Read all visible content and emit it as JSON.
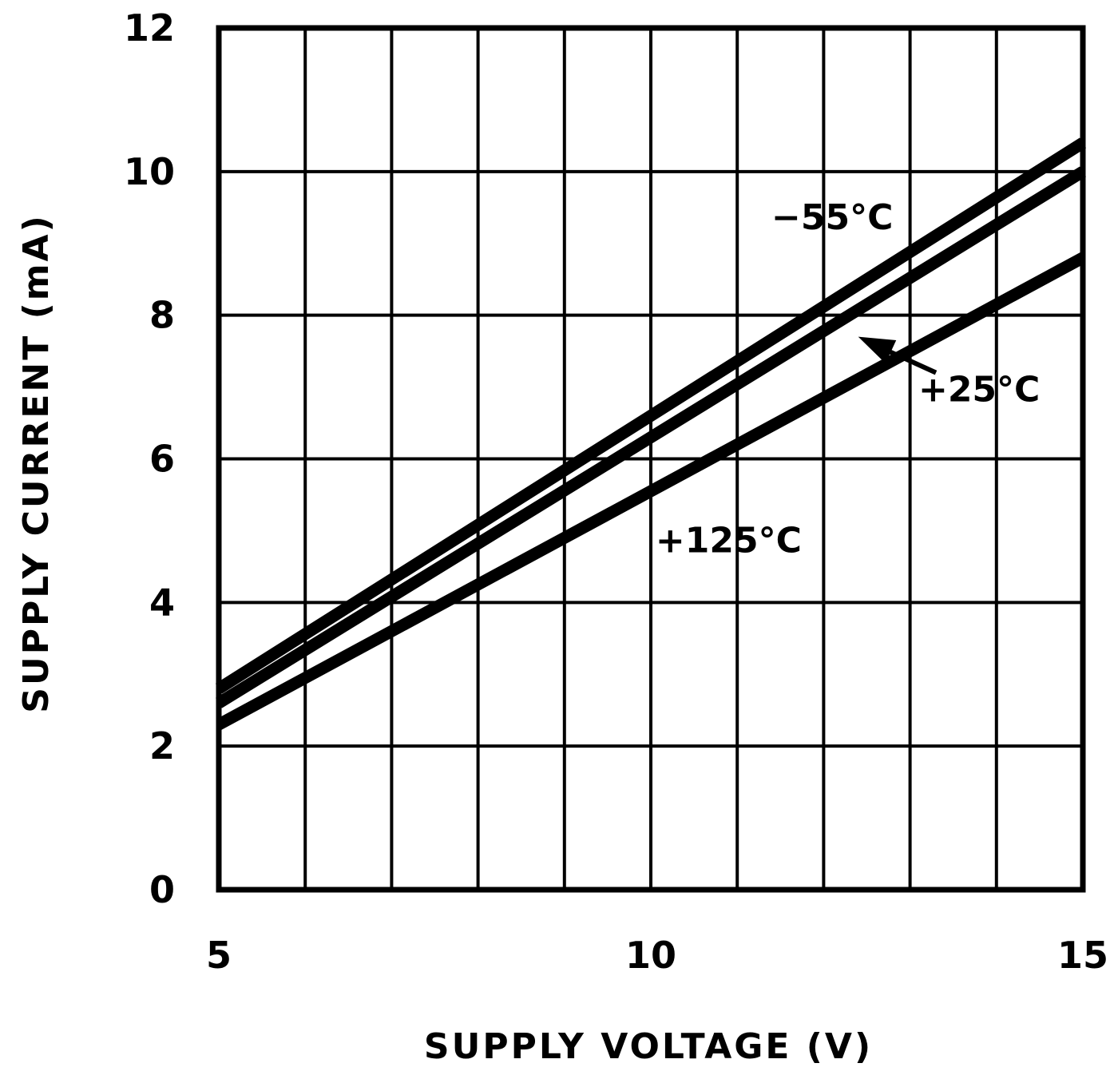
{
  "chart_data": {
    "type": "line",
    "xlabel": "SUPPLY VOLTAGE (V)",
    "ylabel": "SUPPLY CURRENT (mA)",
    "xlim": [
      5,
      15
    ],
    "ylim": [
      0,
      12
    ],
    "xticks": [
      5,
      10,
      15
    ],
    "yticks": [
      0,
      2,
      4,
      6,
      8,
      10,
      12
    ],
    "x_tick_labels": [
      "5",
      "10",
      "15"
    ],
    "y_tick_labels": [
      "0",
      "2",
      "4",
      "6",
      "8",
      "10",
      "12"
    ],
    "x_minor_step": 1,
    "y_minor_step": 2,
    "grid": true,
    "series": [
      {
        "name": "−55°C",
        "x": [
          5,
          15
        ],
        "y": [
          2.8,
          10.4
        ]
      },
      {
        "name": "+25°C",
        "x": [
          5,
          15
        ],
        "y": [
          2.6,
          10.0
        ]
      },
      {
        "name": "+125°C",
        "x": [
          5,
          15
        ],
        "y": [
          2.3,
          8.8
        ]
      }
    ],
    "annotations": [
      {
        "text": "−55°C",
        "x": 12.1,
        "y": 9.2
      },
      {
        "text": "+25°C",
        "x": 13.8,
        "y": 6.8
      },
      {
        "text": "+125°C",
        "x": 10.9,
        "y": 4.7
      }
    ],
    "colors": {
      "line": "#000000",
      "grid": "#000000",
      "background": "#ffffff"
    }
  }
}
